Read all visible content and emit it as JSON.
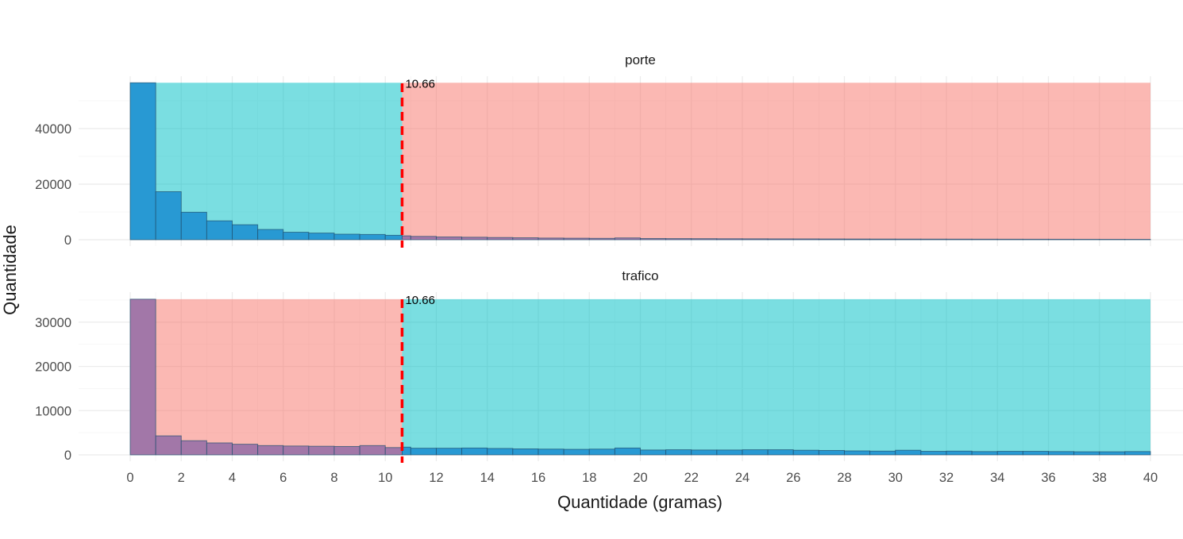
{
  "chart_data": {
    "type": "bar",
    "subtype": "faceted-histogram",
    "xlabel": "Quantidade (gramas)",
    "ylabel": "Quantidade",
    "xlim": [
      0,
      40
    ],
    "x_ticks": [
      0,
      2,
      4,
      6,
      8,
      10,
      12,
      14,
      16,
      18,
      20,
      22,
      24,
      26,
      28,
      30,
      32,
      34,
      36,
      38,
      40
    ],
    "bin_width": 1,
    "threshold": {
      "value": 10.66,
      "label": "10.66",
      "color": "#ff0000",
      "style": "dashed"
    },
    "grid": true,
    "legend": "none",
    "colors": {
      "teal_region": "#00c0c6",
      "red_region": "#f8766d",
      "blue_bar": "#2899d3",
      "purple_bar": "#a277a8",
      "bar_outline": "#1f4f6e"
    },
    "facets": [
      {
        "label": "porte",
        "ylim": [
          0,
          56000
        ],
        "y_ticks": [
          0,
          20000,
          40000
        ],
        "region_left_color": "#00c0c6",
        "region_right_color": "#f8766d",
        "bin_edges": [
          0,
          1,
          2,
          3,
          4,
          5,
          6,
          7,
          8,
          9,
          10,
          10.66,
          11,
          12,
          13,
          14,
          15,
          16,
          17,
          18,
          19,
          20,
          21,
          22,
          23,
          24,
          25,
          26,
          27,
          28,
          29,
          30,
          31,
          32,
          33,
          34,
          35,
          36,
          37,
          38,
          39,
          40
        ],
        "bar_colors": [
          "#2899d3",
          "#2899d3",
          "#2899d3",
          "#2899d3",
          "#2899d3",
          "#2899d3",
          "#2899d3",
          "#2899d3",
          "#2899d3",
          "#2899d3",
          "#2899d3",
          "#a277a8",
          "#a277a8",
          "#a277a8",
          "#a277a8",
          "#a277a8",
          "#a277a8",
          "#a277a8",
          "#a277a8",
          "#a277a8",
          "#a277a8",
          "#a277a8",
          "#a277a8",
          "#a277a8",
          "#a277a8",
          "#a277a8",
          "#a277a8",
          "#a277a8",
          "#a277a8",
          "#a277a8",
          "#a277a8",
          "#a277a8",
          "#a277a8",
          "#a277a8",
          "#a277a8",
          "#a277a8",
          "#a277a8",
          "#a277a8",
          "#a277a8",
          "#a277a8",
          "#a277a8"
        ],
        "values": [
          56500,
          17300,
          9900,
          6800,
          5400,
          3700,
          2700,
          2400,
          2000,
          1900,
          1600,
          1400,
          1200,
          1000,
          900,
          800,
          700,
          600,
          550,
          500,
          650,
          450,
          400,
          380,
          350,
          330,
          310,
          300,
          280,
          260,
          250,
          240,
          230,
          220,
          210,
          200,
          190,
          180,
          170,
          160,
          150
        ]
      },
      {
        "label": "trafico",
        "ylim": [
          0,
          35000
        ],
        "y_ticks": [
          0,
          10000,
          20000,
          30000
        ],
        "region_left_color": "#f8766d",
        "region_right_color": "#00c0c6",
        "bin_edges": [
          0,
          1,
          2,
          3,
          4,
          5,
          6,
          7,
          8,
          9,
          10,
          10.66,
          11,
          12,
          13,
          14,
          15,
          16,
          17,
          18,
          19,
          20,
          21,
          22,
          23,
          24,
          25,
          26,
          27,
          28,
          29,
          30,
          31,
          32,
          33,
          34,
          35,
          36,
          37,
          38,
          39,
          40
        ],
        "bar_colors": [
          "#a277a8",
          "#a277a8",
          "#a277a8",
          "#a277a8",
          "#a277a8",
          "#a277a8",
          "#a277a8",
          "#a277a8",
          "#a277a8",
          "#a277a8",
          "#a277a8",
          "#2899d3",
          "#2899d3",
          "#2899d3",
          "#2899d3",
          "#2899d3",
          "#2899d3",
          "#2899d3",
          "#2899d3",
          "#2899d3",
          "#2899d3",
          "#2899d3",
          "#2899d3",
          "#2899d3",
          "#2899d3",
          "#2899d3",
          "#2899d3",
          "#2899d3",
          "#2899d3",
          "#2899d3",
          "#2899d3",
          "#2899d3",
          "#2899d3",
          "#2899d3",
          "#2899d3",
          "#2899d3",
          "#2899d3",
          "#2899d3",
          "#2899d3",
          "#2899d3",
          "#2899d3"
        ],
        "values": [
          35200,
          4300,
          3200,
          2700,
          2400,
          2100,
          2000,
          1950,
          1900,
          2100,
          1650,
          1750,
          1500,
          1500,
          1550,
          1450,
          1350,
          1300,
          1250,
          1300,
          1550,
          1100,
          1150,
          1100,
          1100,
          1150,
          1150,
          1050,
          1000,
          900,
          850,
          1050,
          800,
          850,
          750,
          800,
          800,
          750,
          700,
          700,
          750
        ]
      }
    ]
  }
}
